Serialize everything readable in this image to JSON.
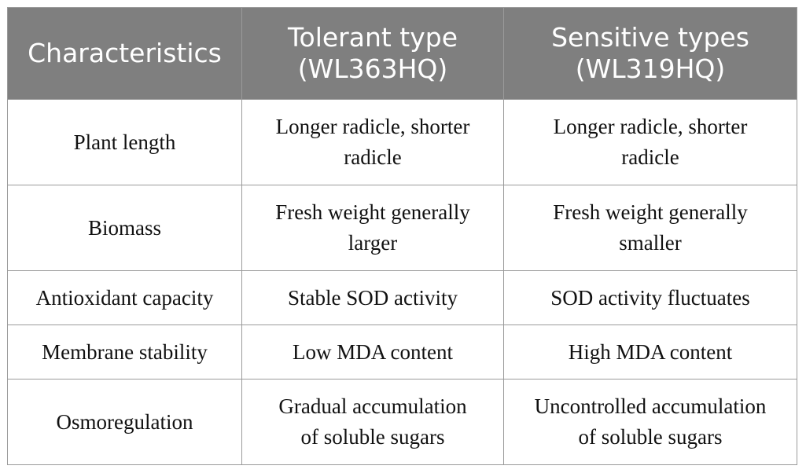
{
  "table": {
    "headers": [
      {
        "line1": "Characteristics",
        "line2": ""
      },
      {
        "line1": "Tolerant type",
        "line2": "(WL363HQ)"
      },
      {
        "line1": "Sensitive types",
        "line2": "(WL319HQ)"
      }
    ],
    "rows": [
      {
        "characteristic": "Plant length",
        "tolerant": [
          "Longer radicle, shorter",
          "radicle"
        ],
        "sensitive": [
          "Longer radicle, shorter",
          "radicle"
        ]
      },
      {
        "characteristic": "Biomass",
        "tolerant": [
          "Fresh weight generally",
          "larger"
        ],
        "sensitive": [
          "Fresh weight generally",
          "smaller"
        ]
      },
      {
        "characteristic": "Antioxidant capacity",
        "tolerant": [
          "Stable SOD activity",
          ""
        ],
        "sensitive": [
          "SOD activity fluctuates",
          ""
        ]
      },
      {
        "characteristic": "Membrane stability",
        "tolerant": [
          "Low MDA content",
          ""
        ],
        "sensitive": [
          "High MDA content",
          ""
        ]
      },
      {
        "characteristic": "Osmoregulation",
        "tolerant": [
          "Gradual accumulation",
          "of soluble sugars"
        ],
        "sensitive": [
          "Uncontrolled accumulation",
          "of soluble sugars"
        ]
      }
    ]
  },
  "colors": {
    "header_bg": "#7f7f7f",
    "header_text": "#ffffff",
    "border": "#9a9a9a",
    "body_text": "#111111"
  }
}
